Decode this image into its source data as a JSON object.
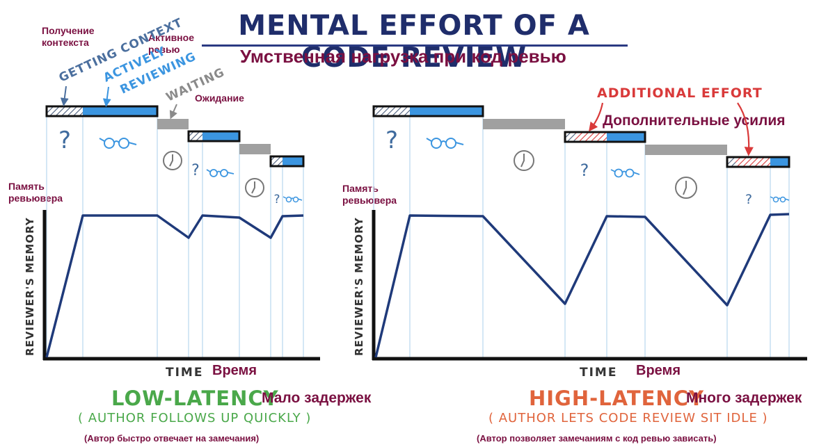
{
  "title_en": "Mental effort of a code review",
  "title_ru": "Умственная нагрузка при код ревью",
  "left": {
    "label_context_ru": "Получение\nконтекста",
    "label_active_ru": "Активное\nревью",
    "label_waiting_ru": "Ожидание",
    "getting_context_en": "Getting context",
    "actively_en": "Actively",
    "reviewing_en": "Reviewing",
    "waiting_en": "Waiting",
    "memory_ru": "Память\nревьювера",
    "axis_y_en": "Reviewer's memory",
    "axis_x_en": "Time",
    "axis_x_ru": "Время",
    "caption_en": "Low-latency",
    "caption_ru": "Мало задержек",
    "sub_en": "( Author follows up quickly )",
    "sub_ru": "(Автор быстро отвечает на замечания)"
  },
  "right": {
    "additional_en": "Additional effort",
    "additional_ru": "Дополнительные  усилия",
    "memory_ru": "Память\nревьювера",
    "axis_y_en": "Reviewer's memory",
    "axis_x_en": "Time",
    "axis_x_ru": "Время",
    "caption_en": "High-latency",
    "caption_ru": "Много задержек",
    "sub_en": "( Author lets code review sit idle )",
    "sub_ru": "(Автор позволяет замечаниям с код ревью зависать)"
  },
  "colors": {
    "navy": "#1f2d6b",
    "blue_bar": "#3b95e0",
    "gray_bar": "#a0a0a0",
    "green": "#4aa84a",
    "orange": "#e0643c",
    "red": "#d93a3a",
    "maroon": "#7a1041",
    "guide": "#c6dff2"
  },
  "icons": [
    "question-mark-icon",
    "glasses-icon",
    "clock-icon",
    "arrow-icon"
  ]
}
